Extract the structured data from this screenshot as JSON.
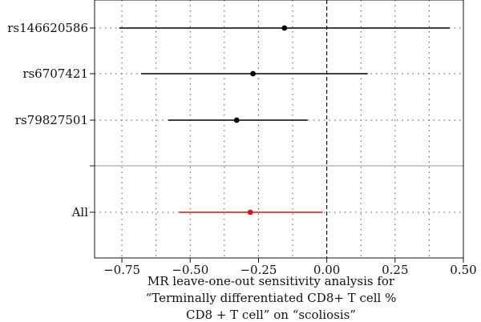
{
  "chart_data": {
    "type": "forest",
    "xlabel": [
      "MR leave-one-out sensitivity analysis for",
      "“Terminally differentiated CD8+ T cell %",
      "CD8 + T cell” on “scoliosis”"
    ],
    "xlim": [
      -0.85,
      0.5
    ],
    "xticks": [
      -0.75,
      -0.5,
      -0.25,
      0.0,
      0.25,
      0.5
    ],
    "xtick_labels": [
      "−0.75",
      "−0.50",
      "−0.25",
      "0.00",
      "0.25",
      "0.50"
    ],
    "reference_line": 0.0,
    "grid": true,
    "rows": [
      {
        "label": "rs146620586",
        "estimate": -0.155,
        "lower": -0.76,
        "upper": 0.45,
        "color": "#000000"
      },
      {
        "label": "rs6707421",
        "estimate": -0.27,
        "lower": -0.68,
        "upper": 0.15,
        "color": "#000000"
      },
      {
        "label": "rs79827501",
        "estimate": -0.33,
        "lower": -0.58,
        "upper": -0.07,
        "color": "#000000"
      },
      {
        "label": "All",
        "estimate": -0.28,
        "lower": -0.54,
        "upper": -0.015,
        "color": "#e3120b"
      }
    ],
    "separator_color": "#b8b8b8"
  }
}
